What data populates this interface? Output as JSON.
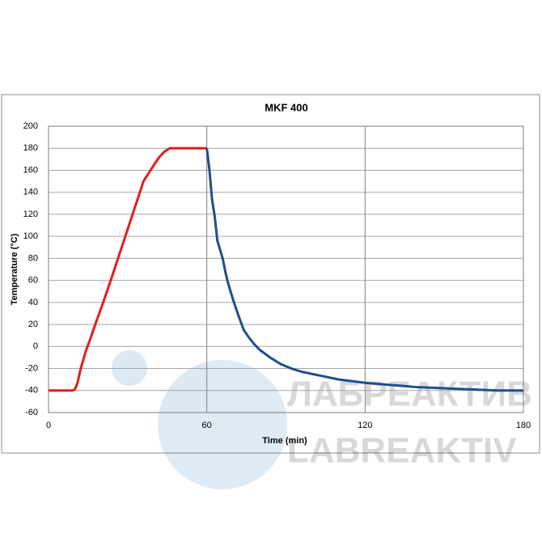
{
  "chart_data": {
    "type": "line",
    "title": "MKF 400",
    "x_label": "Time (min)",
    "y_label": "Temperature (°C)",
    "xlim": [
      0,
      180
    ],
    "xticks": [
      0,
      60,
      120,
      180
    ],
    "ylim": [
      -60,
      200
    ],
    "yticks": [
      -60,
      -40,
      -20,
      0,
      20,
      40,
      60,
      80,
      100,
      120,
      140,
      160,
      180,
      200
    ],
    "grid": true,
    "series": [
      {
        "color": "#e0201b",
        "x": [
          0,
          9,
          10,
          11,
          12,
          14,
          16,
          18,
          20,
          24,
          28,
          32,
          36,
          40,
          42,
          44,
          46,
          48,
          60
        ],
        "values": [
          -40,
          -40,
          -39,
          -33,
          -22,
          -5,
          8,
          22,
          35,
          63,
          92,
          121,
          150,
          165,
          172,
          177,
          180,
          180,
          180
        ]
      },
      {
        "color": "#1f4e8c",
        "x": [
          60,
          61,
          62,
          63,
          64,
          65,
          66,
          67,
          68,
          70,
          72,
          74,
          76,
          78,
          80,
          84,
          88,
          92,
          96,
          100,
          104,
          110,
          120,
          130,
          140,
          150,
          160,
          170,
          180
        ],
        "values": [
          180,
          160,
          133,
          118,
          96,
          88,
          80,
          68,
          58,
          42,
          28,
          15,
          8,
          2,
          -3,
          -10,
          -16,
          -20,
          -23,
          -25,
          -27,
          -30,
          -33,
          -35,
          -37,
          -38,
          -39,
          -40,
          -40
        ]
      }
    ],
    "watermark": [
      "ЛАБРЕАКТИВ",
      "LABREAKTIV"
    ]
  }
}
